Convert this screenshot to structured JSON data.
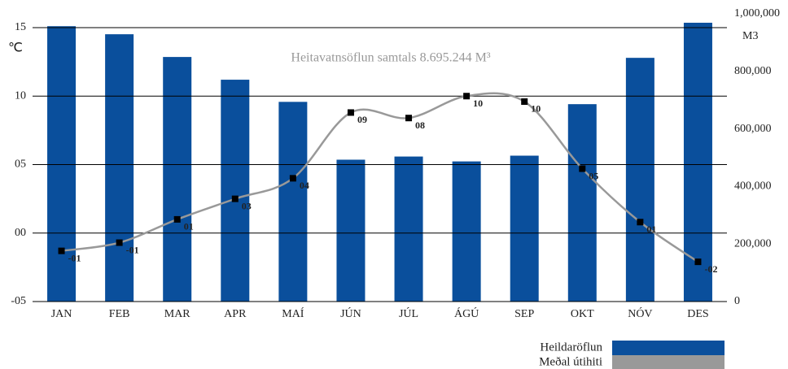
{
  "chart_data": {
    "type": "bar_line",
    "title": "Heitavatnsöflun samtals 8.695.244  M³",
    "y_label": "℃",
    "y2_label": "M3",
    "categories": [
      "JAN",
      "FEB",
      "MAR",
      "APR",
      "MAÍ",
      "JÚN",
      "JÚL",
      "ÁGÚ",
      "SEP",
      "OKT",
      "NÓV",
      "DES"
    ],
    "series": [
      {
        "name": "Heildaröflun",
        "color": "#0a4f9c",
        "axis": "y2",
        "kind": "bar",
        "values": [
          957000,
          929000,
          850000,
          771000,
          694000,
          493000,
          504000,
          487000,
          507000,
          686000,
          847000,
          969000
        ]
      },
      {
        "name": "Meðal útihiti",
        "color": "#999999",
        "axis": "y",
        "kind": "line",
        "values": [
          -1.3,
          -0.7,
          1.0,
          2.5,
          4.0,
          8.8,
          8.4,
          10.0,
          9.6,
          4.7,
          0.8,
          -2.1
        ],
        "value_labels": [
          "-01",
          "-01",
          "01",
          "03",
          "04",
          "09",
          "08",
          "10",
          "10",
          "05",
          "01",
          "-02"
        ]
      }
    ],
    "ylim": [
      -5,
      15
    ],
    "yticks": [
      {
        "value": -5,
        "label": "-05"
      },
      {
        "value": 0,
        "label": "00"
      },
      {
        "value": 5,
        "label": "05"
      },
      10,
      15
    ],
    "y2lim": [
      0,
      1000000
    ],
    "y2ticks": [
      0,
      {
        "value": 200000,
        "label": "200,000"
      },
      {
        "value": 400000,
        "label": "400,000"
      },
      {
        "value": 600000,
        "label": "600,000"
      },
      {
        "value": 800000,
        "label": "800,000"
      },
      {
        "value": 1000000,
        "label": "1,000,000"
      }
    ],
    "grid": true
  }
}
